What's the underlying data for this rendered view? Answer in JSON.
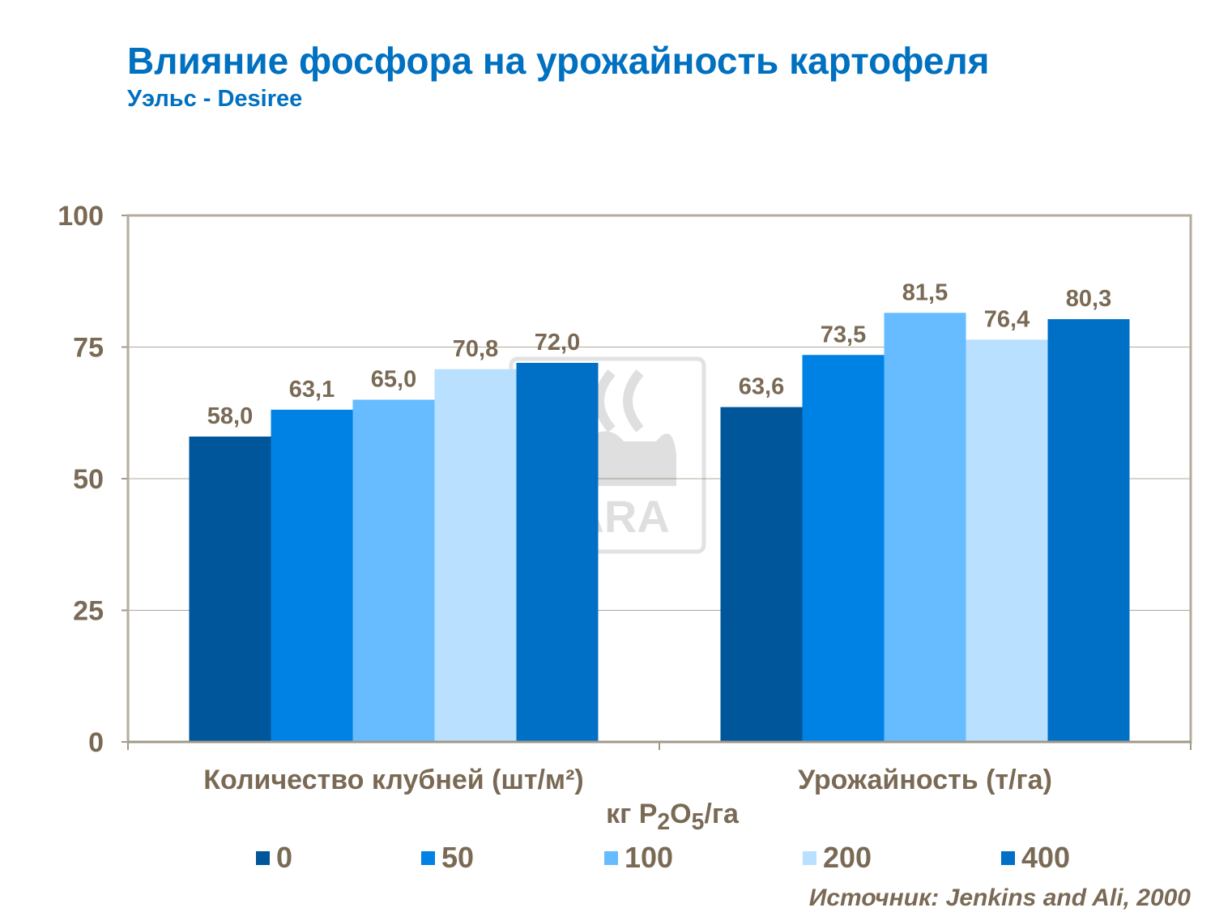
{
  "title": "Влияние фосфора на урожайность картофеля",
  "subtitle": "Уэльс - Desiree",
  "source": "Источник: Jenkins and Ali, 2000",
  "watermark": "YARA",
  "chart_data": {
    "type": "bar",
    "categories": [
      "Количество клубней (шт/м²)",
      "Урожайность (т/га)"
    ],
    "legend_title": "кг P2O5/га",
    "legend_title_parts": {
      "a": "кг P",
      "sub1": "2",
      "b": "O",
      "sub2": "5",
      "c": "/га"
    },
    "series": [
      {
        "name": "0",
        "color": "#00569a",
        "values": [
          58.0,
          63.6
        ],
        "labels": [
          "58,0",
          "63,6"
        ]
      },
      {
        "name": "50",
        "color": "#0082e4",
        "values": [
          63.1,
          73.5
        ],
        "labels": [
          "63,1",
          "73,5"
        ]
      },
      {
        "name": "100",
        "color": "#66bcff",
        "values": [
          65.0,
          81.5
        ],
        "labels": [
          "65,0",
          "81,5"
        ]
      },
      {
        "name": "200",
        "color": "#b9e0ff",
        "values": [
          70.8,
          76.4
        ],
        "labels": [
          "70,8",
          "76,4"
        ]
      },
      {
        "name": "400",
        "color": "#0070c6",
        "values": [
          72.0,
          80.3
        ],
        "labels": [
          "72,0",
          "80,3"
        ]
      }
    ],
    "yticks": [
      "0",
      "25",
      "50",
      "75",
      "100"
    ],
    "ylim": [
      0,
      100
    ],
    "grid": true,
    "legend_placement": "bottom"
  }
}
